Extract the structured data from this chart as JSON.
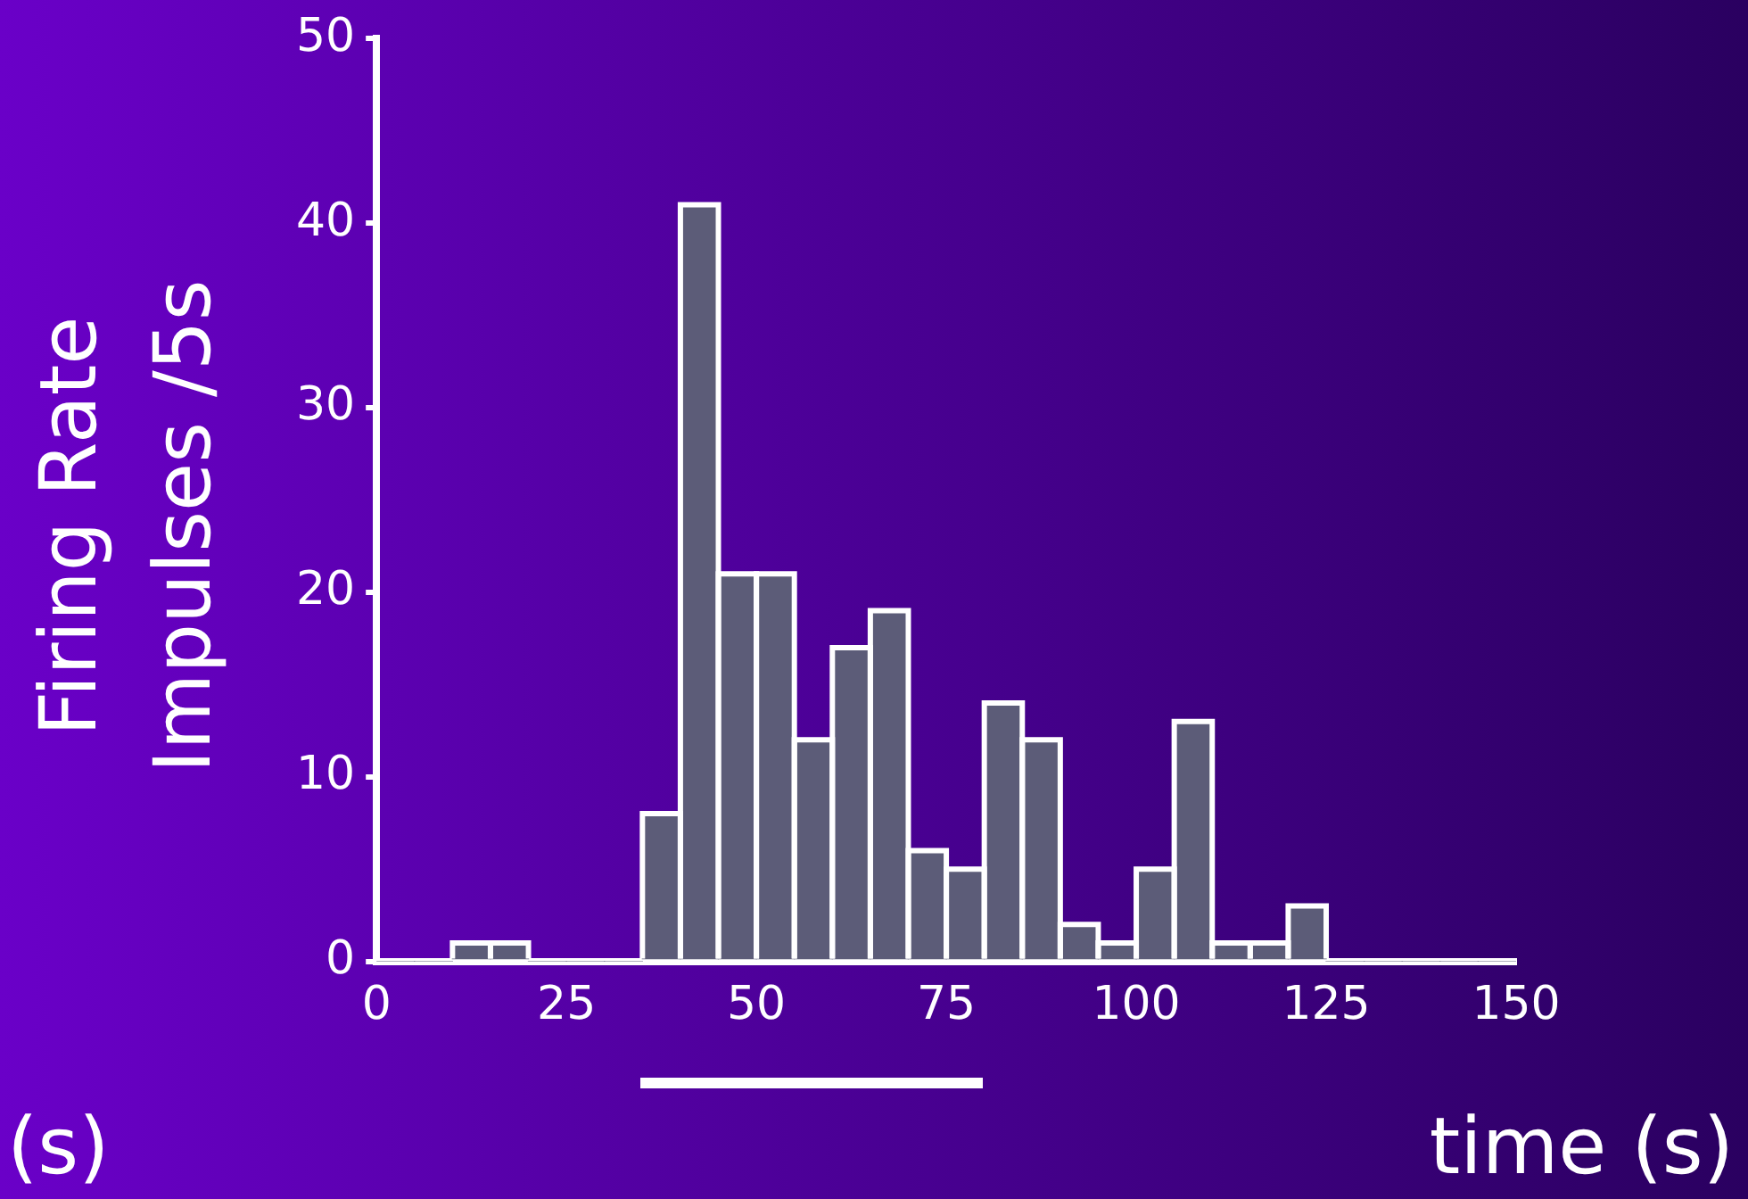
{
  "chart_data": {
    "type": "histogram",
    "ylabel": "Firing Rate\nImpulses /5s",
    "xlabel": "time (s)",
    "bins": [
      0,
      5,
      10,
      15,
      20,
      25,
      30,
      35,
      40,
      45,
      50,
      55,
      60,
      65,
      70,
      75,
      80,
      85,
      90,
      95,
      100,
      105,
      110,
      115,
      120,
      125,
      130,
      135,
      140,
      145,
      150
    ],
    "values": [
      0,
      0,
      1,
      1,
      0,
      0,
      0,
      8,
      41,
      21,
      21,
      12,
      17,
      19,
      6,
      5,
      14,
      12,
      2,
      1,
      5,
      13,
      1,
      1,
      3,
      0,
      0,
      0,
      0,
      0
    ],
    "color": "#5c5c78",
    "xlim": [
      0,
      150
    ],
    "xticks": [
      0,
      25,
      50,
      75,
      100,
      125,
      150
    ],
    "ylim": [
      0,
      50
    ],
    "yticks": [
      0,
      10,
      20,
      30,
      40,
      50
    ],
    "annotations": [
      "(s)"
    ],
    "grid": false,
    "legend": false
  }
}
